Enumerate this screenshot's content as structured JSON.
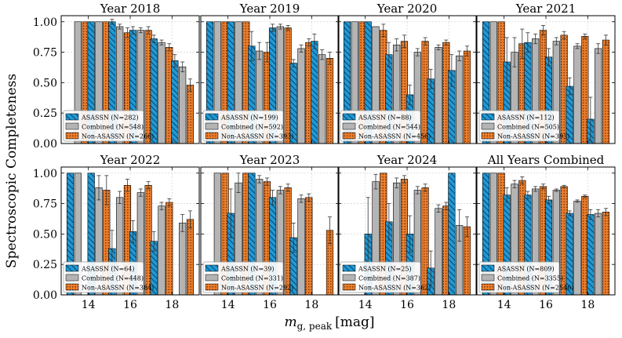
{
  "figure": {
    "ylabel": "Spectroscopic Completeness",
    "xlabel_main": "m",
    "xlabel_sub": "g, peak",
    "xlabel_unit": "[mag]"
  },
  "series_meta": [
    {
      "key": "asassn",
      "name": "ASASSN",
      "color": "#1f9ad6",
      "hatch": "diagonal"
    },
    {
      "key": "combined",
      "name": "Combined",
      "color": "#b4b4b4",
      "hatch": "none"
    },
    {
      "key": "non",
      "name": "Non-ASASSN",
      "color": "#ec7d2b",
      "hatch": "dots"
    }
  ],
  "chart_data": [
    {
      "type": "bar",
      "title": "Year 2018",
      "x": [
        13.5,
        14.5,
        15.5,
        16.5,
        17.5,
        18.5
      ],
      "xticks": [
        14,
        16,
        18
      ],
      "ylim": [
        0,
        1.05
      ],
      "yticks": [
        0.0,
        0.25,
        0.5,
        0.75,
        1.0
      ],
      "legend_labels": [
        "ASASSN (N=282)",
        "Combined (N=548)",
        "Non-ASASSN (N=266)"
      ],
      "series": [
        {
          "name": "ASASSN",
          "values": [
            null,
            1.0,
            1.0,
            0.93,
            0.86,
            0.68
          ],
          "errors": [
            0,
            0,
            0.02,
            0.03,
            0.03,
            0.05
          ]
        },
        {
          "name": "Combined",
          "values": [
            1.0,
            1.0,
            0.96,
            0.93,
            0.83,
            0.63
          ],
          "errors": [
            0,
            0,
            0.02,
            0.02,
            0.02,
            0.04
          ]
        },
        {
          "name": "Non-ASASSN",
          "values": [
            1.0,
            1.0,
            0.91,
            0.93,
            0.79,
            0.48
          ],
          "errors": [
            0,
            0,
            0.04,
            0.03,
            0.03,
            0.05
          ]
        }
      ]
    },
    {
      "type": "bar",
      "title": "Year 2019",
      "x": [
        13.5,
        14.5,
        15.5,
        16.5,
        17.5,
        18.5
      ],
      "xticks": [
        14,
        16,
        18
      ],
      "ylim": [
        0,
        1.05
      ],
      "yticks": [
        0.0,
        0.25,
        0.5,
        0.75,
        1.0
      ],
      "legend_labels": [
        "ASASSN (N=199)",
        "Combined (N=592)",
        "Non-ASASSN (N=393)"
      ],
      "series": [
        {
          "name": "ASASSN",
          "values": [
            1.0,
            1.0,
            0.8,
            0.95,
            0.66,
            0.84
          ],
          "errors": [
            0,
            0,
            0.12,
            0.03,
            0.03,
            0.06
          ]
        },
        {
          "name": "Combined",
          "values": [
            1.0,
            1.0,
            0.76,
            0.96,
            0.78,
            0.73
          ],
          "errors": [
            0,
            0,
            0.07,
            0.02,
            0.03,
            0.04
          ]
        },
        {
          "name": "Non-ASASSN",
          "values": [
            1.0,
            1.0,
            0.75,
            0.95,
            0.83,
            0.7
          ],
          "errors": [
            0,
            0,
            0.08,
            0.02,
            0.03,
            0.05
          ]
        }
      ]
    },
    {
      "type": "bar",
      "title": "Year 2020",
      "x": [
        13.5,
        14.5,
        15.5,
        16.5,
        17.5,
        18.5
      ],
      "xticks": [
        14,
        16,
        18
      ],
      "ylim": [
        0,
        1.05
      ],
      "yticks": [
        0.0,
        0.25,
        0.5,
        0.75,
        1.0
      ],
      "legend_labels": [
        "ASASSN (N=88)",
        "Combined (N=544)",
        "Non-ASASSN (N=456)"
      ],
      "series": [
        {
          "name": "ASASSN",
          "values": [
            1.0,
            1.0,
            0.73,
            0.4,
            0.53,
            0.6
          ],
          "errors": [
            0,
            0,
            0.1,
            0.08,
            0.08,
            0.13
          ]
        },
        {
          "name": "Combined",
          "values": [
            1.0,
            0.96,
            0.81,
            0.75,
            0.79,
            0.72
          ],
          "errors": [
            0,
            0,
            0.05,
            0.03,
            0.02,
            0.04
          ]
        },
        {
          "name": "Non-ASASSN",
          "values": [
            1.0,
            0.93,
            0.84,
            0.84,
            0.83,
            0.76
          ],
          "errors": [
            0,
            0.05,
            0.05,
            0.03,
            0.02,
            0.04
          ]
        }
      ]
    },
    {
      "type": "bar",
      "title": "Year 2021",
      "x": [
        13.5,
        14.5,
        15.5,
        16.5,
        17.5,
        18.5
      ],
      "xticks": [
        14,
        16,
        18
      ],
      "ylim": [
        0,
        1.05
      ],
      "yticks": [
        0.0,
        0.25,
        0.5,
        0.75,
        1.0
      ],
      "legend_labels": [
        "ASASSN (N=112)",
        "Combined (N=505)",
        "Non-ASASSN (N=393)"
      ],
      "series": [
        {
          "name": "ASASSN",
          "values": [
            1.0,
            0.67,
            0.83,
            0.71,
            0.47,
            0.2
          ],
          "errors": [
            0,
            0.2,
            0.08,
            0.07,
            0.07,
            0.18
          ]
        },
        {
          "name": "Combined",
          "values": [
            1.0,
            0.75,
            0.86,
            0.84,
            0.8,
            0.78
          ],
          "errors": [
            0,
            0.12,
            0.04,
            0.03,
            0.02,
            0.04
          ]
        },
        {
          "name": "Non-ASASSN",
          "values": [
            1.0,
            0.82,
            0.93,
            0.89,
            0.88,
            0.85
          ],
          "errors": [
            0,
            0.12,
            0.04,
            0.03,
            0.02,
            0.04
          ]
        }
      ]
    },
    {
      "type": "bar",
      "title": "Year 2022",
      "x": [
        13.5,
        14.5,
        15.5,
        16.5,
        17.5,
        18.5
      ],
      "xticks": [
        14,
        16,
        18
      ],
      "ylim": [
        0,
        1.05
      ],
      "yticks": [
        0.0,
        0.25,
        0.5,
        0.75,
        1.0
      ],
      "legend_labels": [
        "ASASSN (N=64)",
        "Combined (N=448)",
        "Non-ASASSN (N=384)"
      ],
      "series": [
        {
          "name": "ASASSN",
          "values": [
            1.0,
            1.0,
            0.38,
            0.52,
            0.44,
            null
          ],
          "errors": [
            0,
            0,
            0.15,
            0.09,
            0.08,
            0
          ]
        },
        {
          "name": "Combined",
          "values": [
            1.0,
            0.88,
            0.8,
            0.84,
            0.73,
            0.59
          ],
          "errors": [
            0,
            0.1,
            0.05,
            0.03,
            0.03,
            0.07
          ]
        },
        {
          "name": "Non-ASASSN",
          "values": [
            null,
            0.86,
            0.9,
            0.9,
            0.76,
            0.62
          ],
          "errors": [
            0,
            0.12,
            0.05,
            0.03,
            0.03,
            0.07
          ]
        }
      ]
    },
    {
      "type": "bar",
      "title": "Year 2023",
      "x": [
        13.5,
        14.5,
        15.5,
        16.5,
        17.5,
        18.5
      ],
      "xticks": [
        14,
        16,
        18
      ],
      "ylim": [
        0,
        1.05
      ],
      "yticks": [
        0.0,
        0.25,
        0.5,
        0.75,
        1.0
      ],
      "legend_labels": [
        "ASASSN (N=39)",
        "Combined (N=331)",
        "Non-ASASSN (N=292)"
      ],
      "series": [
        {
          "name": "ASASSN",
          "values": [
            null,
            0.67,
            1.0,
            0.8,
            0.47,
            null
          ],
          "errors": [
            0,
            0.2,
            0,
            0.06,
            0.12,
            0
          ]
        },
        {
          "name": "Combined",
          "values": [
            1.0,
            0.92,
            0.95,
            0.86,
            0.79,
            null
          ],
          "errors": [
            0,
            0.08,
            0.03,
            0.03,
            0.03,
            0
          ]
        },
        {
          "name": "Non-ASASSN",
          "values": [
            1.0,
            1.0,
            0.93,
            0.88,
            0.8,
            0.53
          ],
          "errors": [
            0,
            0,
            0.03,
            0.03,
            0.03,
            0.11
          ]
        }
      ]
    },
    {
      "type": "bar",
      "title": "Year 2024",
      "x": [
        13.5,
        14.5,
        15.5,
        16.5,
        17.5,
        18.5
      ],
      "xticks": [
        14,
        16,
        18
      ],
      "ylim": [
        0,
        1.05
      ],
      "yticks": [
        0.0,
        0.25,
        0.5,
        0.75,
        1.0
      ],
      "legend_labels": [
        "ASASSN (N=25)",
        "Combined (N=387)",
        "Non-ASASSN (N=362)"
      ],
      "series": [
        {
          "name": "ASASSN",
          "values": [
            null,
            0.5,
            0.6,
            0.5,
            0.22,
            1.0
          ],
          "errors": [
            0,
            0.3,
            0.15,
            0.15,
            0.14,
            0
          ]
        },
        {
          "name": "Combined",
          "values": [
            null,
            0.93,
            0.92,
            0.86,
            0.71,
            0.57
          ],
          "errors": [
            0,
            0.06,
            0.04,
            0.03,
            0.03,
            0.13
          ]
        },
        {
          "name": "Non-ASASSN",
          "values": [
            null,
            1.0,
            0.95,
            0.88,
            0.73,
            0.56
          ],
          "errors": [
            0,
            0,
            0.03,
            0.03,
            0.03,
            0.08
          ]
        }
      ]
    },
    {
      "type": "bar",
      "title": "All Years Combined",
      "x": [
        13.5,
        14.5,
        15.5,
        16.5,
        17.5,
        18.5
      ],
      "xticks": [
        14,
        16,
        18
      ],
      "ylim": [
        0,
        1.05
      ],
      "yticks": [
        0.0,
        0.25,
        0.5,
        0.75,
        1.0
      ],
      "legend_labels": [
        "ASASSN (N=809)",
        "Combined (N=3355)",
        "Non-ASASSN (N=2546)"
      ],
      "series": [
        {
          "name": "ASASSN",
          "values": [
            1.0,
            0.82,
            0.82,
            0.78,
            0.67,
            0.66
          ],
          "errors": [
            0,
            0.06,
            0.03,
            0.03,
            0.02,
            0.04
          ]
        },
        {
          "name": "Combined",
          "values": [
            1.0,
            0.91,
            0.87,
            0.86,
            0.77,
            0.67
          ],
          "errors": [
            0,
            0.03,
            0.02,
            0.01,
            0.01,
            0.03
          ]
        },
        {
          "name": "Non-ASASSN",
          "values": [
            1.0,
            0.94,
            0.89,
            0.89,
            0.81,
            0.68
          ],
          "errors": [
            0,
            0.03,
            0.02,
            0.01,
            0.01,
            0.03
          ]
        }
      ]
    }
  ]
}
